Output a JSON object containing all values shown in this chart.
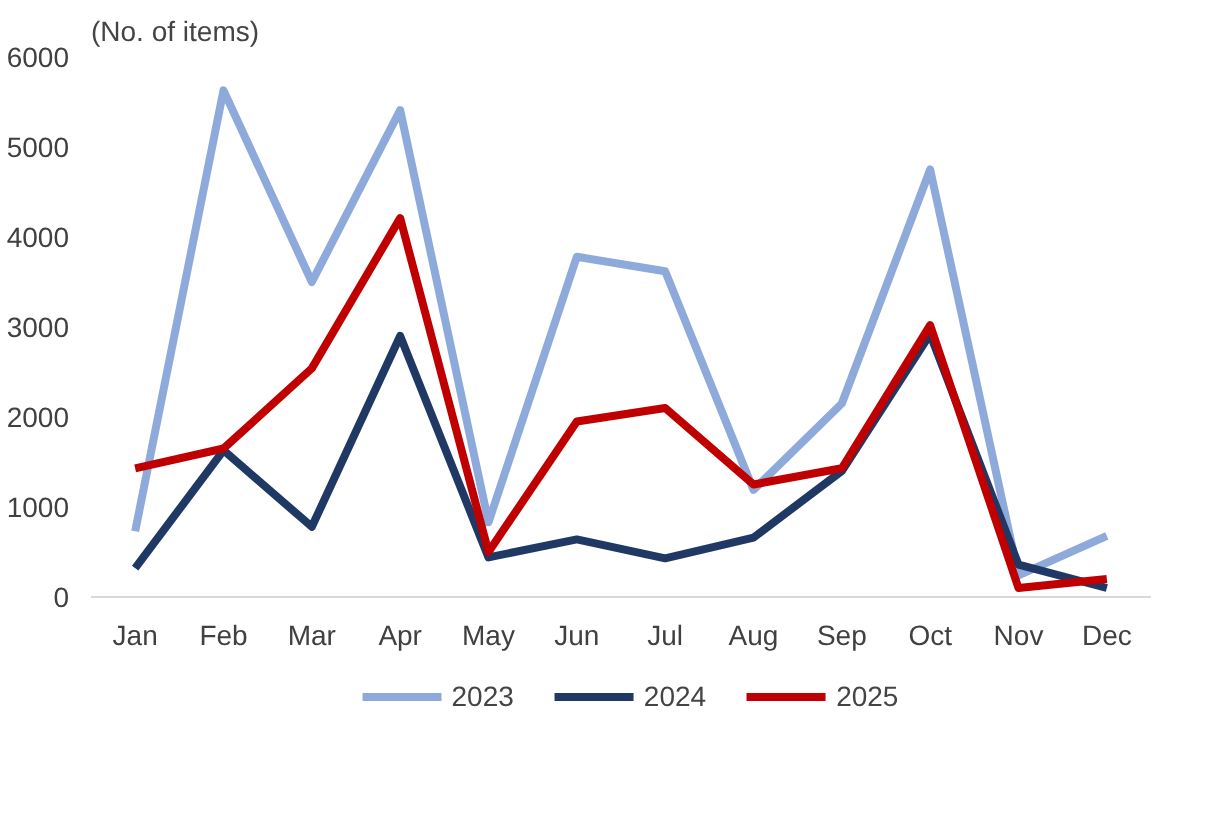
{
  "chart_data": {
    "type": "line",
    "ylabel": "(No.  of  items)",
    "categories": [
      "Jan",
      "Feb",
      "Mar",
      "Apr",
      "May",
      "Jun",
      "Jul",
      "Aug",
      "Sep",
      "Oct",
      "Nov",
      "Dec"
    ],
    "series": [
      {
        "name": "2023",
        "color": "#8eaadb",
        "values": [
          730,
          5630,
          3500,
          5410,
          830,
          3780,
          3620,
          1190,
          2150,
          4750,
          240,
          680
        ]
      },
      {
        "name": "2024",
        "color": "#1f3864",
        "values": [
          320,
          1630,
          780,
          2900,
          440,
          640,
          430,
          660,
          1400,
          2920,
          360,
          100
        ]
      },
      {
        "name": "2025",
        "color": "#c00000",
        "values": [
          1430,
          1650,
          2540,
          4210,
          500,
          1950,
          2100,
          1250,
          1430,
          3020,
          100,
          200
        ]
      }
    ],
    "ylim": [
      0,
      6000
    ],
    "yticks": [
      0,
      1000,
      2000,
      3000,
      4000,
      5000,
      6000
    ],
    "grid": false,
    "legend": "bottom",
    "marker": "none",
    "line_style": "solid"
  }
}
